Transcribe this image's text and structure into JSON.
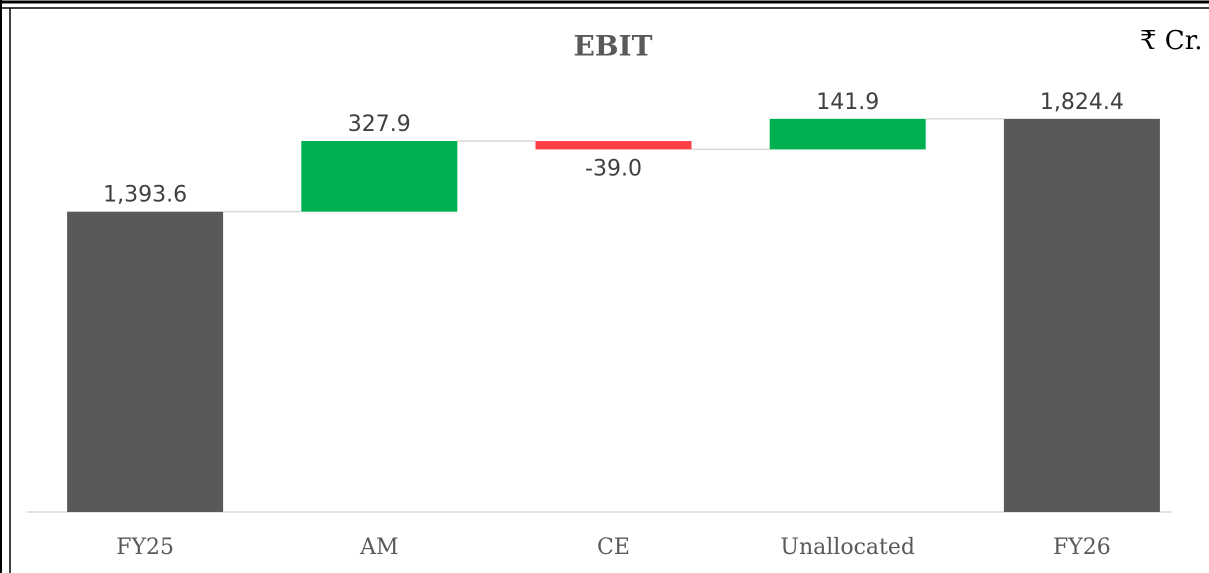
{
  "chart_data": {
    "type": "waterfall",
    "title": "EBIT",
    "unit": "₹ Cr.",
    "categories": [
      "FY25",
      "AM",
      "CE",
      "Unallocated",
      "FY26"
    ],
    "values": [
      1393.6,
      327.9,
      -39.0,
      141.9,
      1824.4
    ],
    "value_labels": [
      "1,393.6",
      "327.9",
      "-39.0",
      "141.9",
      "1,824.4"
    ],
    "totals": [
      true,
      false,
      false,
      false,
      true
    ],
    "colors": {
      "total": "#595959",
      "increase": "#00b050",
      "decrease": "#ff3f48"
    },
    "ylim": [
      0,
      2000
    ]
  }
}
